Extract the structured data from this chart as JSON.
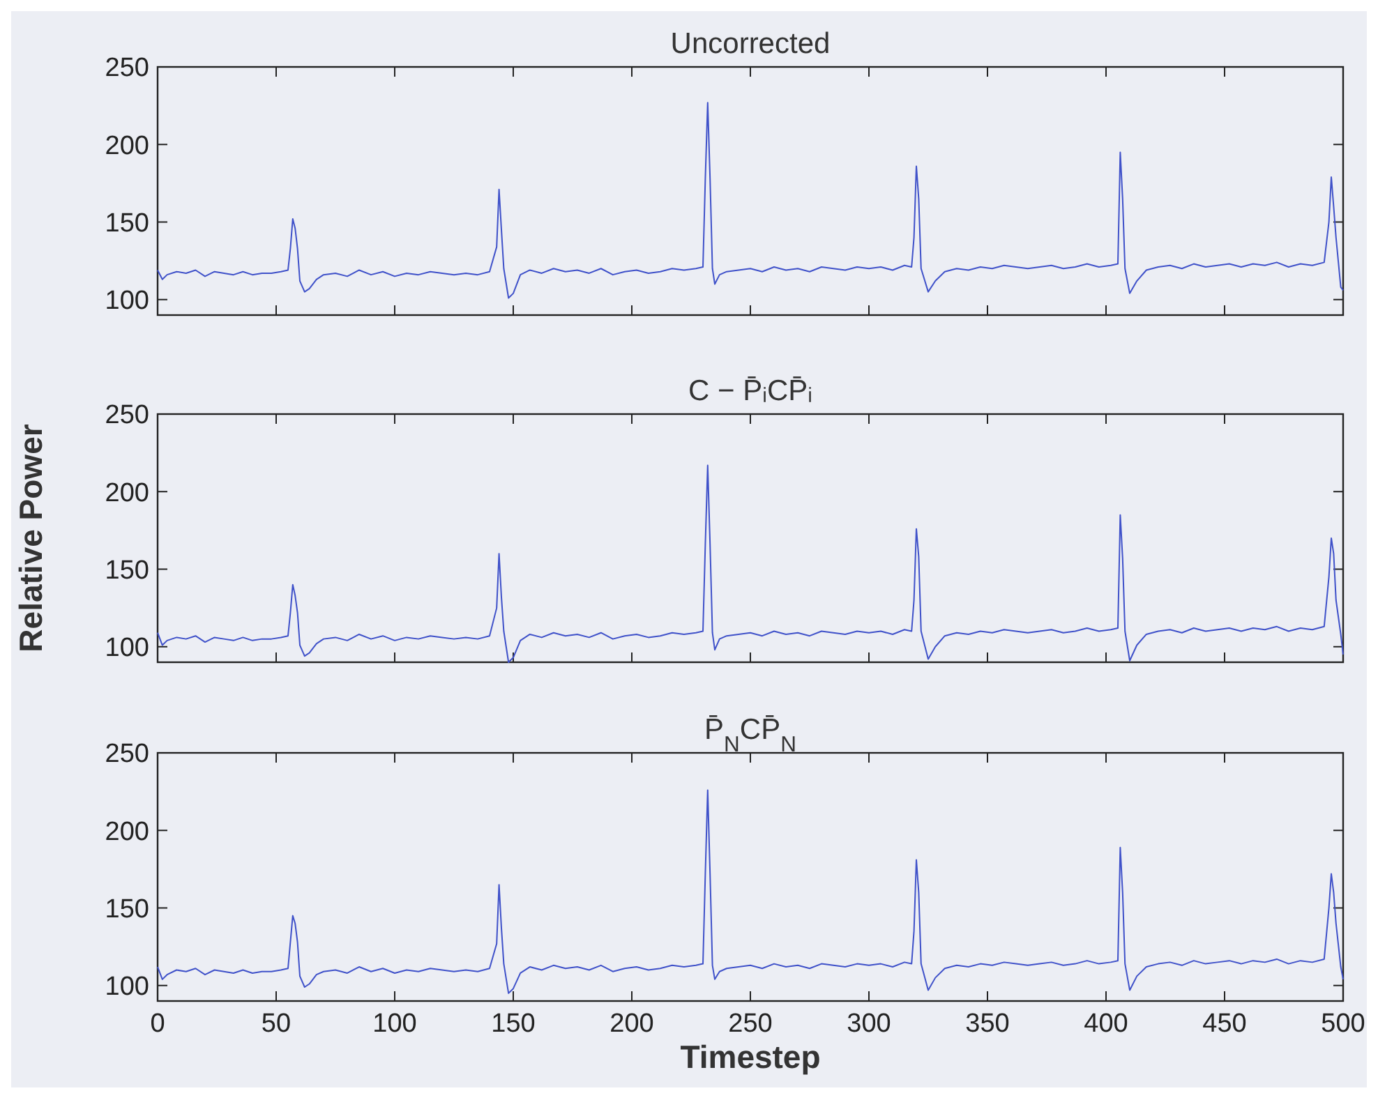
{
  "chart_data": [
    {
      "type": "line",
      "title": "Uncorrected",
      "tick_labels": "y",
      "xlim": [
        0,
        500
      ],
      "ylim": [
        90,
        250
      ],
      "xticks": [
        0,
        50,
        100,
        150,
        200,
        250,
        300,
        350,
        400,
        450,
        500
      ],
      "yticks": [
        100,
        150,
        200,
        250
      ],
      "grid": false,
      "marker": "none",
      "line_style": "solid",
      "x": [
        0,
        2,
        4,
        8,
        12,
        16,
        20,
        24,
        28,
        32,
        36,
        40,
        44,
        48,
        52,
        55,
        56,
        57,
        58,
        59,
        60,
        62,
        64,
        67,
        70,
        75,
        80,
        85,
        90,
        95,
        100,
        105,
        110,
        115,
        120,
        125,
        130,
        135,
        140,
        143,
        144,
        145,
        146,
        148,
        150,
        153,
        157,
        162,
        167,
        172,
        177,
        182,
        187,
        192,
        197,
        202,
        207,
        212,
        217,
        222,
        227,
        230,
        231,
        232,
        233,
        234,
        235,
        237,
        240,
        245,
        250,
        255,
        260,
        265,
        270,
        275,
        280,
        285,
        290,
        295,
        300,
        305,
        310,
        315,
        318,
        319,
        320,
        321,
        322,
        325,
        328,
        332,
        337,
        342,
        347,
        352,
        357,
        362,
        367,
        372,
        377,
        382,
        387,
        392,
        397,
        402,
        405,
        406,
        407,
        408,
        410,
        413,
        417,
        422,
        427,
        432,
        437,
        442,
        447,
        452,
        457,
        462,
        467,
        472,
        477,
        482,
        487,
        492,
        494,
        495,
        496,
        497,
        499,
        500
      ],
      "series": [
        {
          "color": "#3f51c9",
          "values": [
            119,
            113,
            116,
            118,
            117,
            119,
            115,
            118,
            117,
            116,
            118,
            116,
            117,
            117,
            118,
            119,
            133,
            152,
            146,
            133,
            112,
            105,
            107,
            113,
            116,
            117,
            115,
            119,
            116,
            118,
            115,
            117,
            116,
            118,
            117,
            116,
            117,
            116,
            118,
            134,
            171,
            145,
            120,
            101,
            104,
            116,
            119,
            117,
            120,
            118,
            119,
            117,
            120,
            116,
            118,
            119,
            117,
            118,
            120,
            119,
            120,
            121,
            178,
            227,
            178,
            120,
            110,
            116,
            118,
            119,
            120,
            118,
            121,
            119,
            120,
            118,
            121,
            120,
            119,
            121,
            120,
            121,
            119,
            122,
            121,
            140,
            186,
            165,
            120,
            105,
            112,
            118,
            120,
            119,
            121,
            120,
            122,
            121,
            120,
            121,
            122,
            120,
            121,
            123,
            121,
            122,
            123,
            195,
            165,
            120,
            104,
            112,
            119,
            121,
            122,
            120,
            123,
            121,
            122,
            123,
            121,
            123,
            122,
            124,
            121,
            123,
            122,
            124,
            150,
            179,
            160,
            140,
            108,
            106
          ]
        }
      ]
    },
    {
      "type": "line",
      "title": "C − P̄ᵢCP̄ᵢ",
      "ylabel": "Relative Power",
      "tick_labels": "y",
      "xlim": [
        0,
        500
      ],
      "ylim": [
        90,
        250
      ],
      "xticks": [
        0,
        50,
        100,
        150,
        200,
        250,
        300,
        350,
        400,
        450,
        500
      ],
      "yticks": [
        100,
        150,
        200,
        250
      ],
      "grid": false,
      "marker": "none",
      "line_style": "solid",
      "x": [
        0,
        2,
        4,
        8,
        12,
        16,
        20,
        24,
        28,
        32,
        36,
        40,
        44,
        48,
        52,
        55,
        56,
        57,
        58,
        59,
        60,
        62,
        64,
        67,
        70,
        75,
        80,
        85,
        90,
        95,
        100,
        105,
        110,
        115,
        120,
        125,
        130,
        135,
        140,
        143,
        144,
        145,
        146,
        148,
        150,
        153,
        157,
        162,
        167,
        172,
        177,
        182,
        187,
        192,
        197,
        202,
        207,
        212,
        217,
        222,
        227,
        230,
        231,
        232,
        233,
        234,
        235,
        237,
        240,
        245,
        250,
        255,
        260,
        265,
        270,
        275,
        280,
        285,
        290,
        295,
        300,
        305,
        310,
        315,
        318,
        319,
        320,
        321,
        322,
        325,
        328,
        332,
        337,
        342,
        347,
        352,
        357,
        362,
        367,
        372,
        377,
        382,
        387,
        392,
        397,
        402,
        405,
        406,
        407,
        408,
        410,
        413,
        417,
        422,
        427,
        432,
        437,
        442,
        447,
        452,
        457,
        462,
        467,
        472,
        477,
        482,
        487,
        492,
        494,
        495,
        496,
        497,
        499,
        500
      ],
      "series": [
        {
          "color": "#3f51c9",
          "values": [
            109,
            101,
            104,
            106,
            105,
            107,
            103,
            106,
            105,
            104,
            106,
            104,
            105,
            105,
            106,
            107,
            122,
            140,
            133,
            122,
            101,
            94,
            96,
            102,
            105,
            106,
            104,
            108,
            105,
            107,
            104,
            106,
            105,
            107,
            106,
            105,
            106,
            105,
            107,
            125,
            160,
            132,
            110,
            90,
            93,
            104,
            108,
            106,
            109,
            107,
            108,
            106,
            109,
            105,
            107,
            108,
            106,
            107,
            109,
            108,
            109,
            110,
            166,
            217,
            166,
            109,
            98,
            105,
            107,
            108,
            109,
            107,
            110,
            108,
            109,
            107,
            110,
            109,
            108,
            110,
            109,
            110,
            108,
            111,
            110,
            130,
            176,
            158,
            110,
            92,
            100,
            107,
            109,
            108,
            110,
            109,
            111,
            110,
            109,
            110,
            111,
            109,
            110,
            112,
            110,
            111,
            112,
            185,
            157,
            110,
            91,
            101,
            108,
            110,
            111,
            109,
            112,
            110,
            111,
            112,
            110,
            112,
            111,
            113,
            110,
            112,
            111,
            113,
            145,
            170,
            160,
            130,
            108,
            95
          ]
        }
      ]
    },
    {
      "type": "line",
      "title": "P̄$_{N}$CP̄$_{N}$",
      "xlabel": "Timestep",
      "xlim": [
        0,
        500
      ],
      "ylim": [
        90,
        250
      ],
      "xticks": [
        0,
        50,
        100,
        150,
        200,
        250,
        300,
        350,
        400,
        450,
        500
      ],
      "yticks": [
        100,
        150,
        200,
        250
      ],
      "grid": false,
      "marker": "none",
      "line_style": "solid",
      "x": [
        0,
        2,
        4,
        8,
        12,
        16,
        20,
        24,
        28,
        32,
        36,
        40,
        44,
        48,
        52,
        55,
        56,
        57,
        58,
        59,
        60,
        62,
        64,
        67,
        70,
        75,
        80,
        85,
        90,
        95,
        100,
        105,
        110,
        115,
        120,
        125,
        130,
        135,
        140,
        143,
        144,
        145,
        146,
        148,
        150,
        153,
        157,
        162,
        167,
        172,
        177,
        182,
        187,
        192,
        197,
        202,
        207,
        212,
        217,
        222,
        227,
        230,
        231,
        232,
        233,
        234,
        235,
        237,
        240,
        245,
        250,
        255,
        260,
        265,
        270,
        275,
        280,
        285,
        290,
        295,
        300,
        305,
        310,
        315,
        318,
        319,
        320,
        321,
        322,
        325,
        328,
        332,
        337,
        342,
        347,
        352,
        357,
        362,
        367,
        372,
        377,
        382,
        387,
        392,
        397,
        402,
        405,
        406,
        407,
        408,
        410,
        413,
        417,
        422,
        427,
        432,
        437,
        442,
        447,
        452,
        457,
        462,
        467,
        472,
        477,
        482,
        487,
        492,
        494,
        495,
        496,
        497,
        499,
        500
      ],
      "series": [
        {
          "color": "#3f51c9",
          "values": [
            112,
            104,
            107,
            110,
            109,
            111,
            107,
            110,
            109,
            108,
            110,
            108,
            109,
            109,
            110,
            111,
            128,
            145,
            140,
            128,
            106,
            99,
            101,
            107,
            109,
            110,
            108,
            112,
            109,
            111,
            108,
            110,
            109,
            111,
            110,
            109,
            110,
            109,
            111,
            127,
            165,
            137,
            114,
            95,
            98,
            108,
            112,
            110,
            113,
            111,
            112,
            110,
            113,
            109,
            111,
            112,
            110,
            111,
            113,
            112,
            113,
            114,
            172,
            226,
            172,
            113,
            104,
            109,
            111,
            112,
            113,
            111,
            114,
            112,
            113,
            111,
            114,
            113,
            112,
            114,
            113,
            114,
            112,
            115,
            114,
            135,
            181,
            160,
            114,
            97,
            105,
            111,
            113,
            112,
            114,
            113,
            115,
            114,
            113,
            114,
            115,
            113,
            114,
            116,
            114,
            115,
            116,
            189,
            160,
            114,
            97,
            106,
            112,
            114,
            115,
            113,
            116,
            114,
            115,
            116,
            114,
            116,
            115,
            117,
            114,
            116,
            115,
            117,
            150,
            172,
            160,
            140,
            112,
            104
          ]
        }
      ]
    }
  ]
}
